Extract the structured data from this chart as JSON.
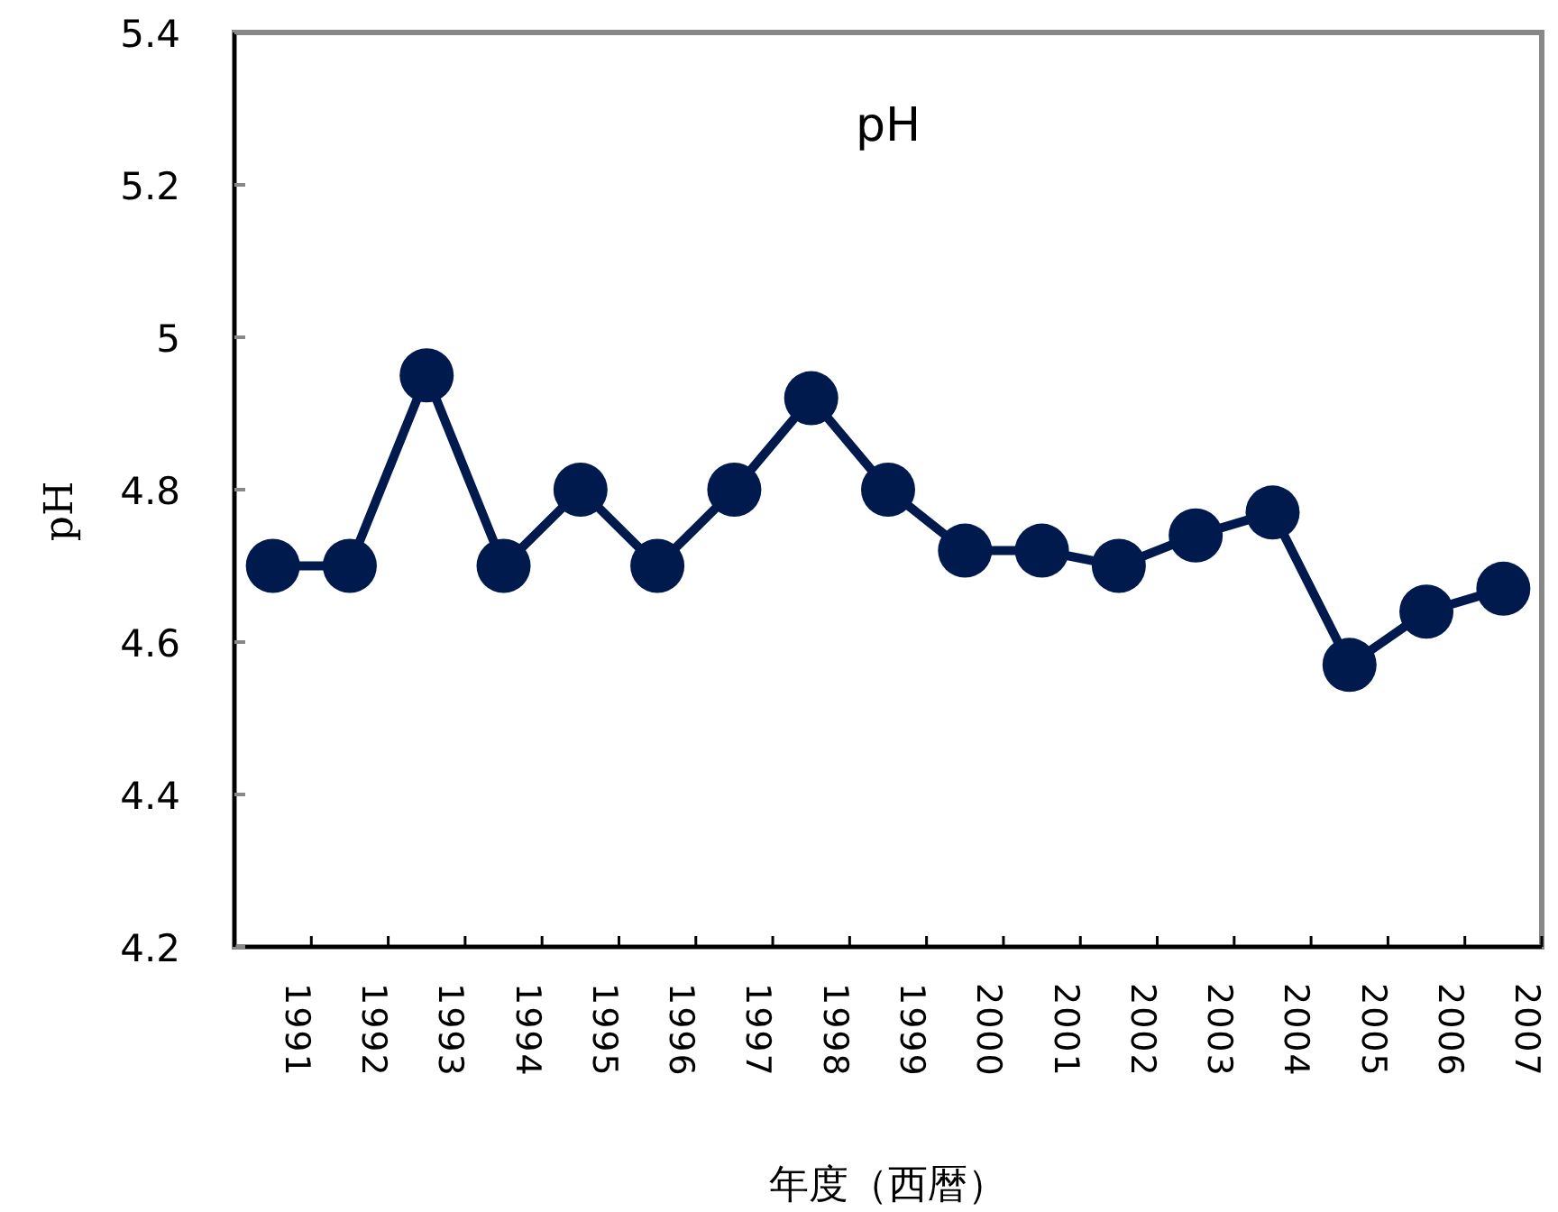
{
  "chart_data": {
    "type": "line",
    "title": "pH",
    "ylabel": "pH",
    "xlabel": "年度（西暦）",
    "categories": [
      "1991",
      "1992",
      "1993",
      "1994",
      "1995",
      "1996",
      "1997",
      "1998",
      "1999",
      "2000",
      "2001",
      "2002",
      "2003",
      "2004",
      "2005",
      "2006",
      "2007"
    ],
    "series": [
      {
        "color": "#001a4d",
        "values": [
          4.7,
          4.7,
          4.95,
          4.7,
          4.8,
          4.7,
          4.8,
          4.92,
          4.8,
          4.72,
          4.72,
          4.7,
          4.74,
          4.77,
          4.57,
          4.64,
          4.67
        ]
      }
    ],
    "ylim": [
      4.2,
      5.4
    ],
    "yticks": [
      4.2,
      4.4,
      4.6,
      4.8,
      5,
      5.2,
      5.4
    ],
    "marker": "circle",
    "line_style": "solid",
    "grid": false
  }
}
